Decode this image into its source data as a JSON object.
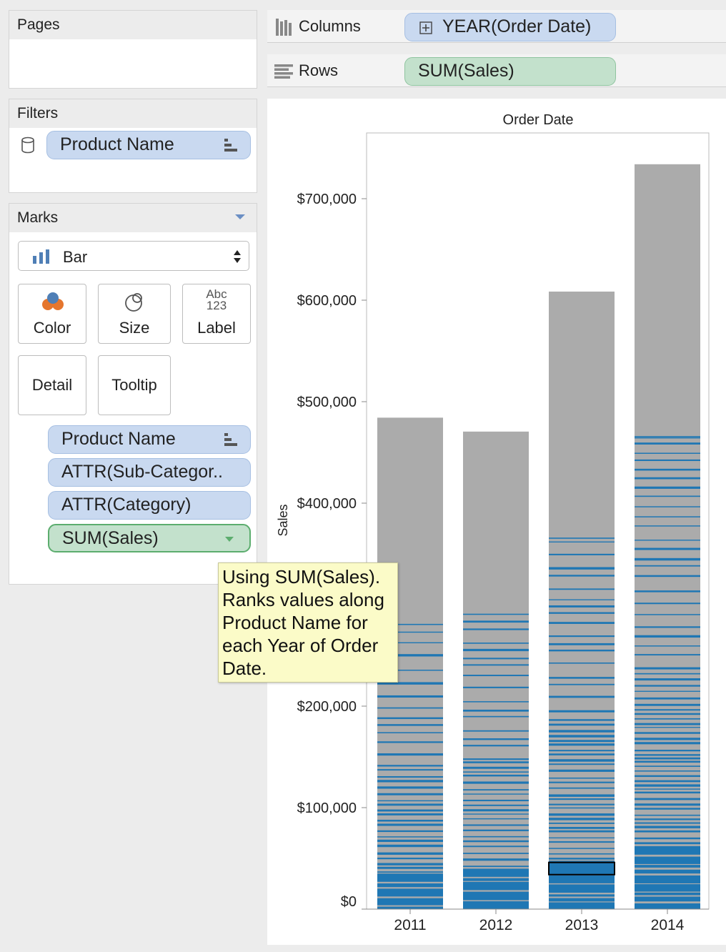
{
  "pages": {
    "title": "Pages"
  },
  "filters": {
    "title": "Filters",
    "pill": "Product Name",
    "db_icon": "cylinder-icon",
    "sort_icon": "sort-bars-icon"
  },
  "marks": {
    "title": "Marks",
    "mark_type": "Bar",
    "buttons": {
      "color": "Color",
      "size": "Size",
      "label": "Label",
      "label_icon_top": "Abc",
      "label_icon_bottom": "123",
      "detail": "Detail",
      "tooltip": "Tooltip"
    },
    "fields": [
      "Product Name",
      "ATTR(Sub-Categor..",
      "ATTR(Category)",
      "SUM(Sales)"
    ]
  },
  "shelves": {
    "columns_label": "Columns",
    "columns_pill": "YEAR(Order Date)",
    "rows_label": "Rows",
    "rows_pill": "SUM(Sales)"
  },
  "tooltip": {
    "lines": [
      "Using SUM(Sales).",
      "Ranks values along",
      "Product Name for",
      "each Year of Order",
      "Date."
    ]
  },
  "colors": {
    "bar_gray": "#ababab",
    "bar_blue": "#1f77b4",
    "pill_blue": "#c9d9f0",
    "pill_green": "#c3e1cc",
    "tooltip_bg": "#fbfbc8"
  },
  "chart_data": {
    "type": "bar",
    "title": "Order Date",
    "xlabel": "",
    "ylabel": "Sales",
    "categories": [
      "2011",
      "2012",
      "2013",
      "2014"
    ],
    "values": [
      484247,
      470533,
      608473,
      733947
    ],
    "ylim": [
      0,
      760000
    ],
    "yticks": [
      0,
      100000,
      200000,
      300000,
      400000,
      500000,
      600000,
      700000
    ],
    "ytick_labels": [
      "$0",
      "$100,000",
      "$200,000",
      "$300,000",
      "$400,000",
      "$500,000",
      "$600,000",
      "$700,000"
    ],
    "highlight_max": [
      280000,
      290000,
      365000,
      465000
    ],
    "selected_mark": {
      "category": "2013",
      "low": 34000,
      "high": 46000
    },
    "grid": false,
    "legend": "none"
  }
}
